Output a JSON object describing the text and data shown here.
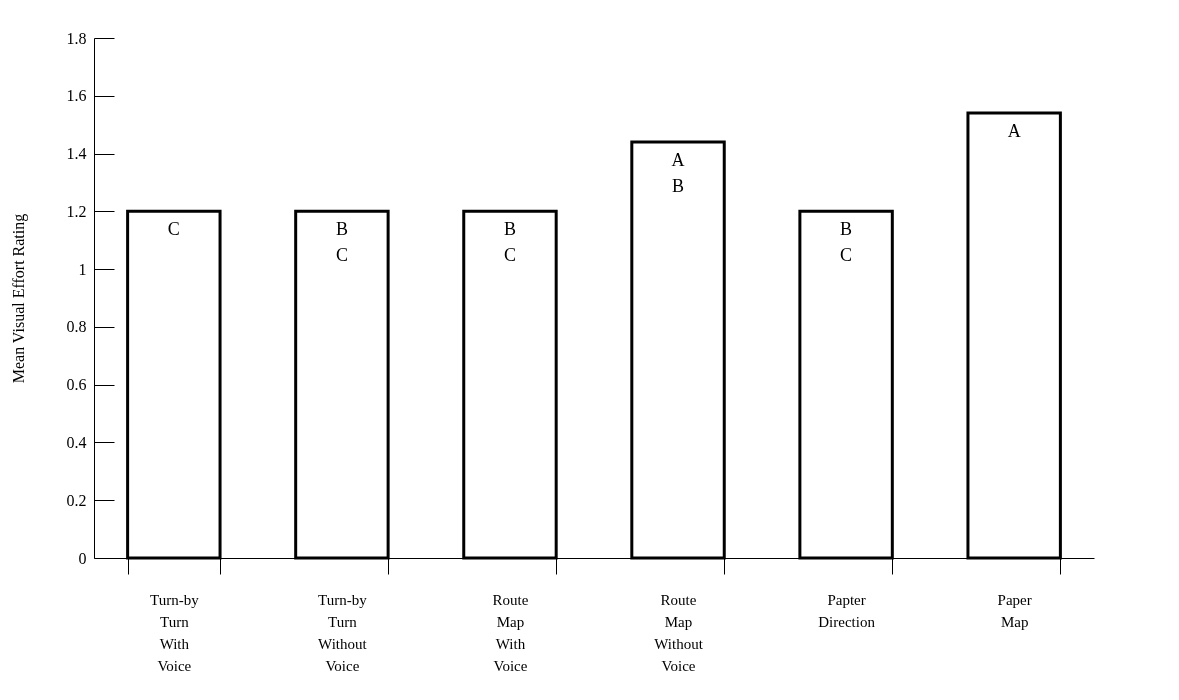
{
  "chart_data": {
    "type": "bar",
    "ylabel": "Mean Visual Effort Rating",
    "categories": [
      "Turn-by Turn With Voice",
      "Turn-by Turn Without Voice",
      "Route Map With Voice",
      "Route Map Without Voice",
      "Papter Direction",
      "Paper Map"
    ],
    "values": [
      1.2,
      1.2,
      1.2,
      1.44,
      1.2,
      1.54
    ],
    "color": "#ffffff",
    "ylim": [
      0,
      1.8
    ],
    "yticks": [
      0,
      0.2,
      0.4,
      0.6,
      0.8,
      1,
      1.2,
      1.4,
      1.6,
      1.8
    ],
    "grid": false,
    "annotations": [
      {
        "text": "C",
        "x": "Turn-by Turn With Voice",
        "y": 1.2
      },
      {
        "text": "B\nC",
        "x": "Turn-by Turn Without Voice",
        "y": 1.2
      },
      {
        "text": "B\nC",
        "x": "Route Map With Voice",
        "y": 1.2
      },
      {
        "text": "A\nB",
        "x": "Route Map Without Voice",
        "y": 1.44
      },
      {
        "text": "B\nC",
        "x": "Papter Direction",
        "y": 1.2
      },
      {
        "text": "A",
        "x": "Paper Map",
        "y": 1.54
      }
    ]
  }
}
